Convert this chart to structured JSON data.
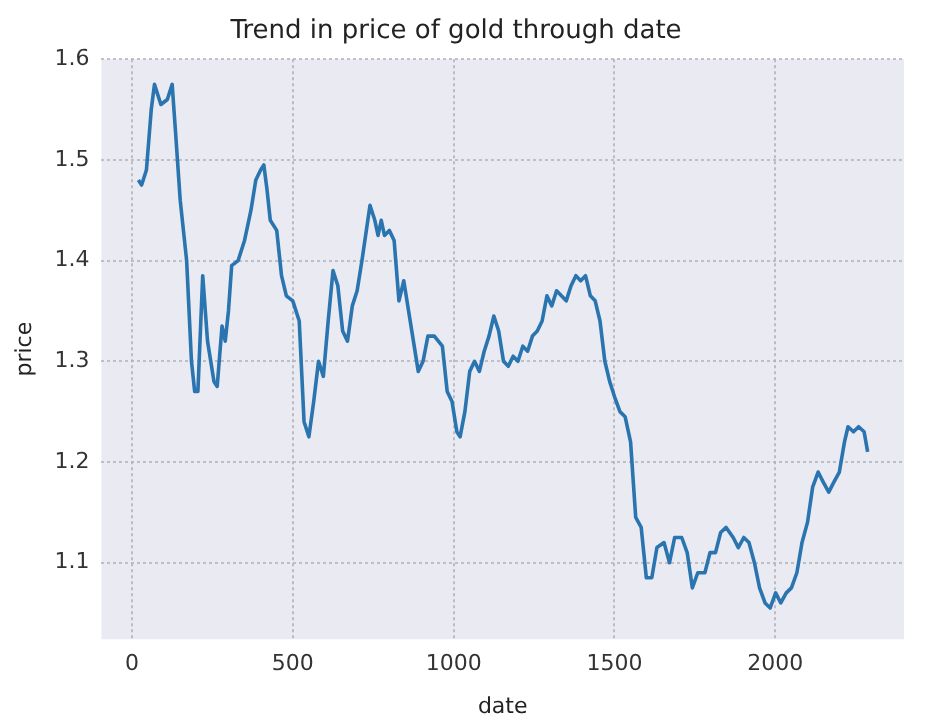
{
  "chart_data": {
    "type": "line",
    "title": "Trend in price of gold through date",
    "xlabel": "date",
    "ylabel": "price",
    "x": [
      20,
      30,
      45,
      60,
      70,
      90,
      110,
      125,
      135,
      150,
      170,
      185,
      195,
      205,
      220,
      235,
      255,
      265,
      280,
      290,
      300,
      310,
      330,
      350,
      370,
      385,
      400,
      410,
      420,
      430,
      450,
      465,
      480,
      500,
      520,
      535,
      550,
      565,
      580,
      595,
      610,
      625,
      640,
      655,
      670,
      685,
      700,
      715,
      740,
      755,
      765,
      775,
      785,
      800,
      815,
      830,
      845,
      860,
      875,
      890,
      905,
      920,
      940,
      965,
      980,
      995,
      1010,
      1020,
      1035,
      1050,
      1065,
      1080,
      1095,
      1110,
      1125,
      1140,
      1155,
      1170,
      1185,
      1200,
      1215,
      1230,
      1245,
      1260,
      1275,
      1290,
      1305,
      1320,
      1335,
      1350,
      1365,
      1380,
      1395,
      1410,
      1425,
      1440,
      1455,
      1470,
      1485,
      1500,
      1517,
      1533,
      1550,
      1566,
      1583,
      1599,
      1616,
      1632,
      1654,
      1671,
      1687,
      1709,
      1726,
      1742,
      1759,
      1781,
      1797,
      1814,
      1830,
      1847,
      1869,
      1885,
      1902,
      1918,
      1935,
      1951,
      1968,
      1984,
      2001,
      2017,
      2034,
      2050,
      2067,
      2083,
      2100,
      2116,
      2133,
      2149,
      2166,
      2182,
      2199,
      2215,
      2226,
      2243,
      2259,
      2276,
      2287
    ],
    "series": [
      {
        "color": "#2a74b0",
        "values": [
          1.48,
          1.475,
          1.49,
          1.55,
          1.575,
          1.555,
          1.56,
          1.575,
          1.53,
          1.46,
          1.4,
          1.3,
          1.27,
          1.27,
          1.385,
          1.32,
          1.28,
          1.275,
          1.335,
          1.32,
          1.35,
          1.395,
          1.4,
          1.42,
          1.45,
          1.48,
          1.49,
          1.495,
          1.47,
          1.44,
          1.43,
          1.385,
          1.365,
          1.36,
          1.34,
          1.24,
          1.225,
          1.26,
          1.3,
          1.285,
          1.34,
          1.39,
          1.375,
          1.33,
          1.32,
          1.355,
          1.37,
          1.4,
          1.455,
          1.44,
          1.425,
          1.44,
          1.425,
          1.43,
          1.42,
          1.36,
          1.38,
          1.35,
          1.32,
          1.29,
          1.3,
          1.325,
          1.325,
          1.315,
          1.27,
          1.26,
          1.23,
          1.225,
          1.25,
          1.29,
          1.3,
          1.29,
          1.31,
          1.325,
          1.345,
          1.33,
          1.3,
          1.295,
          1.305,
          1.3,
          1.315,
          1.31,
          1.325,
          1.33,
          1.34,
          1.365,
          1.355,
          1.37,
          1.365,
          1.36,
          1.375,
          1.385,
          1.38,
          1.385,
          1.365,
          1.36,
          1.34,
          1.3,
          1.28,
          1.265,
          1.25,
          1.245,
          1.22,
          1.145,
          1.135,
          1.085,
          1.085,
          1.115,
          1.12,
          1.1,
          1.125,
          1.125,
          1.11,
          1.075,
          1.09,
          1.09,
          1.11,
          1.11,
          1.13,
          1.135,
          1.125,
          1.115,
          1.125,
          1.12,
          1.1,
          1.075,
          1.06,
          1.055,
          1.07,
          1.06,
          1.07,
          1.075,
          1.09,
          1.12,
          1.14,
          1.175,
          1.19,
          1.18,
          1.17,
          1.18,
          1.19,
          1.22,
          1.235,
          1.23,
          1.235,
          1.23,
          1.21
        ]
      }
    ],
    "xlim": [
      -95,
      2400
    ],
    "xticks": [
      0,
      500,
      1000,
      1500,
      2000
    ],
    "ylim": [
      1.024,
      1.6
    ],
    "yticks": [
      1.1,
      1.2,
      1.3,
      1.4,
      1.5,
      1.6
    ],
    "grid": true,
    "legend": false,
    "marker": "none",
    "line_style": "solid"
  }
}
